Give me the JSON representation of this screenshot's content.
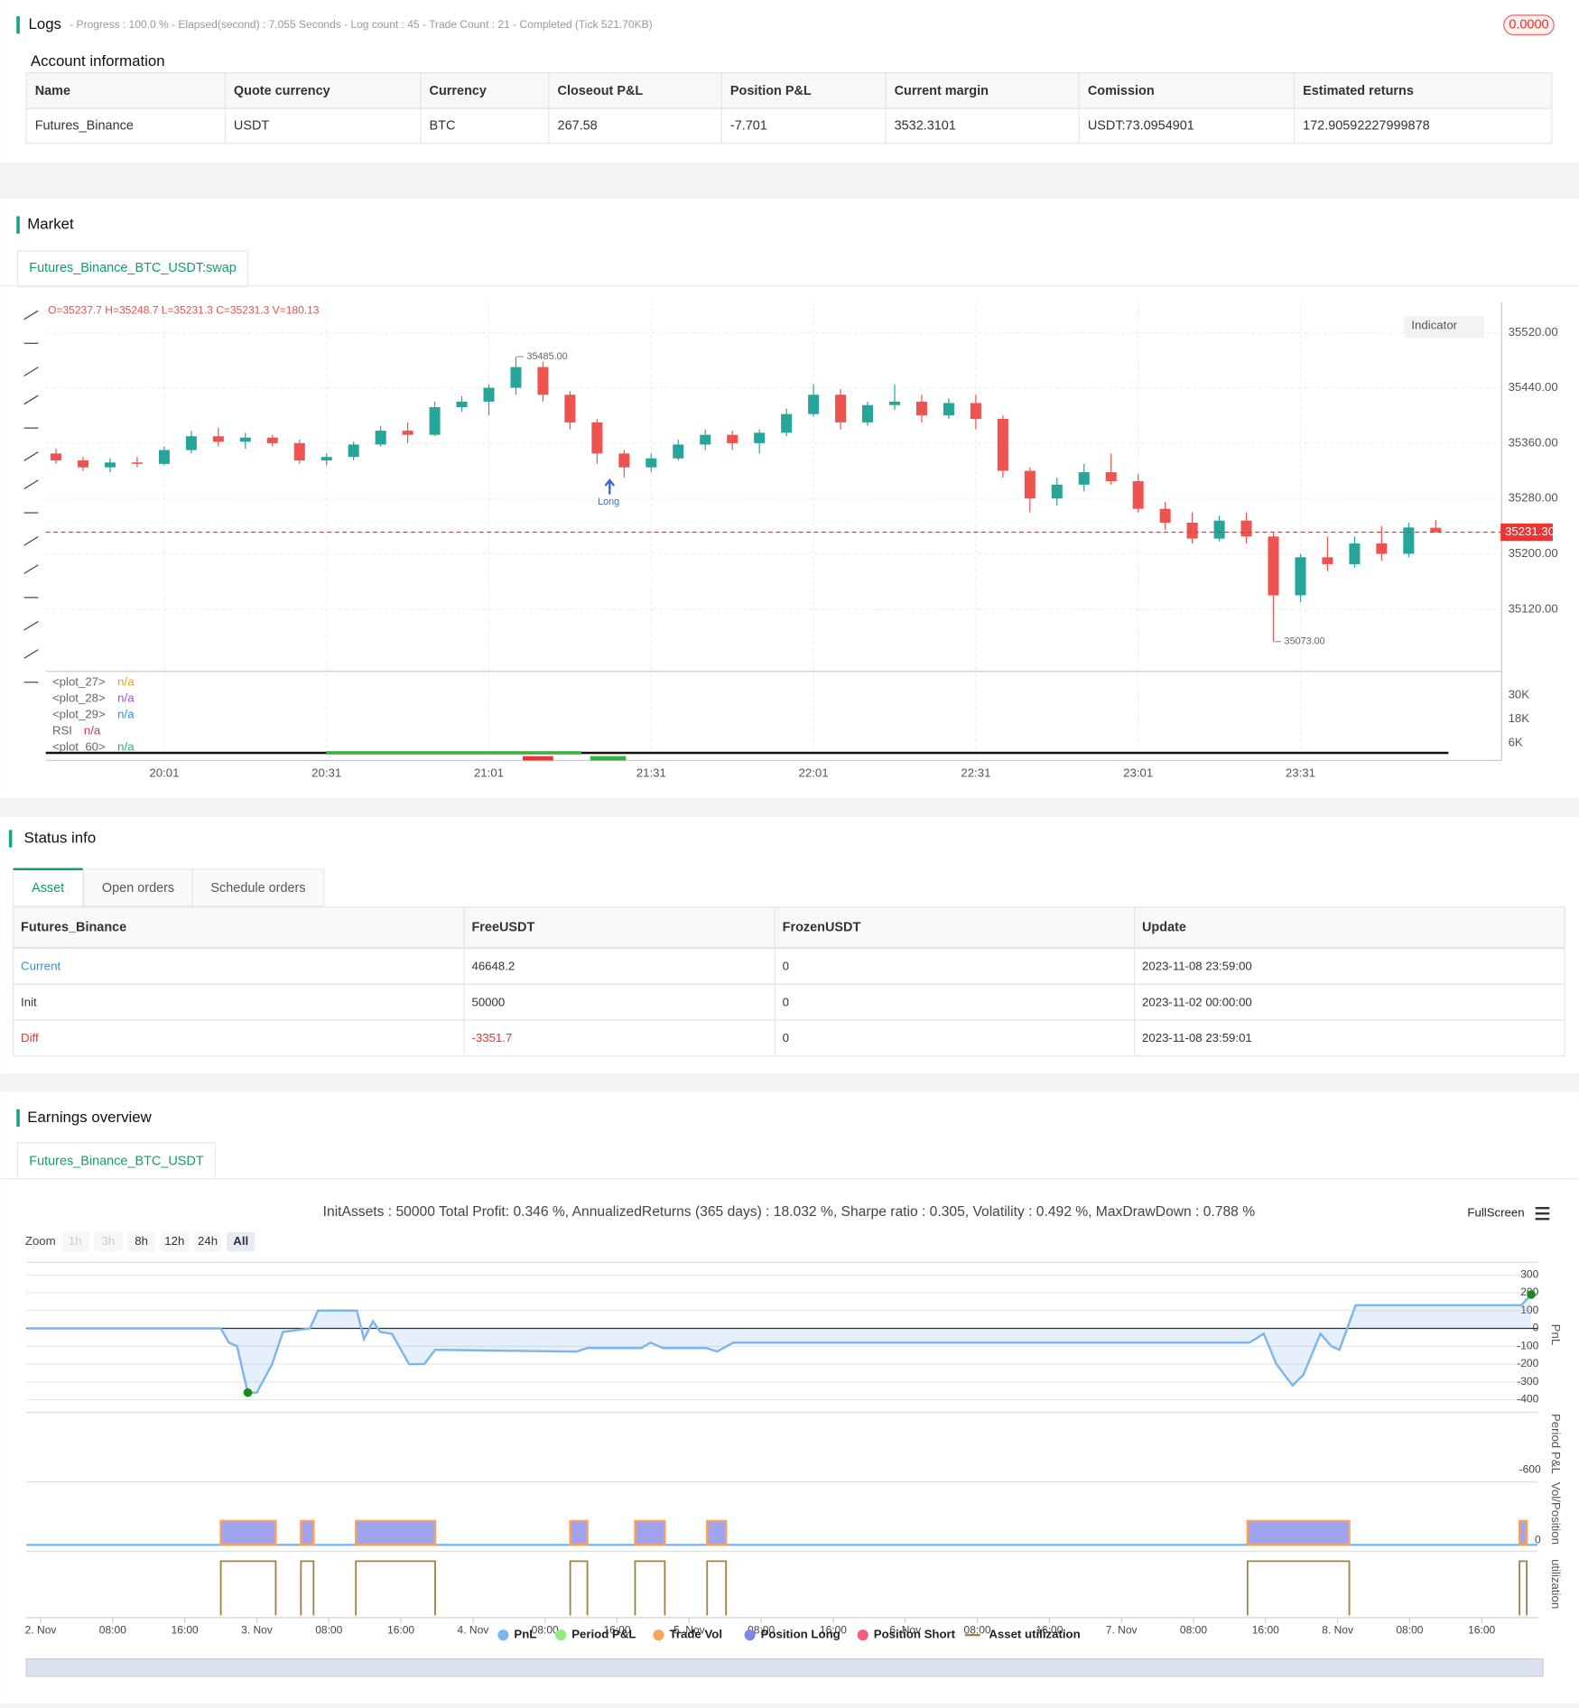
{
  "logs": {
    "title": "Logs",
    "summary": "- Progress : 100.0 % - Elapsed(second) : 7.055  Seconds - Log count : 45 - Trade Count : 21 - Completed (Tick 521.70KB)",
    "badge": "0.0000"
  },
  "account": {
    "title": "Account information",
    "columns": [
      "Name",
      "Quote currency",
      "Currency",
      "Closeout P&L",
      "Position P&L",
      "Current margin",
      "Comission",
      "Estimated returns"
    ],
    "rows": [
      [
        "Futures_Binance",
        "USDT",
        "BTC",
        "267.58",
        "-7.701",
        "3532.3101",
        "USDT:73.0954901",
        "172.90592227999878"
      ]
    ]
  },
  "market": {
    "title": "Market",
    "tab": "Futures_Binance_BTC_USDT:swap",
    "ohlc": "O=35237.7 H=35248.7 L=35231.3 C=35231.3 V=180.13",
    "indicator": "Indicator",
    "long": "Long",
    "legend": [
      {
        "name": "<plot_27>",
        "value": "n/a",
        "color": "#f59a23"
      },
      {
        "name": "<plot_28>",
        "value": "n/a",
        "color": "#9c4fd6"
      },
      {
        "name": "<plot_29>",
        "value": "n/a",
        "color": "#2f8fd8"
      },
      {
        "name": "RSI",
        "value": "n/a",
        "color": "#d6336c"
      },
      {
        "name": "<plot_60>",
        "value": "n/a",
        "color": "#2bb673"
      }
    ],
    "pane_ticks": [
      "30K",
      "18K",
      "6K"
    ]
  },
  "chart_data": [
    {
      "type": "candlestick",
      "categories": [
        null,
        null,
        null,
        null,
        "20:01",
        null,
        null,
        null,
        null,
        null,
        "20:31",
        null,
        null,
        null,
        null,
        null,
        "21:01",
        null,
        null,
        null,
        null,
        null,
        "21:31",
        null,
        null,
        null,
        null,
        null,
        "22:01",
        null,
        null,
        null,
        null,
        null,
        "22:31",
        null,
        null,
        null,
        null,
        null,
        "23:01",
        null,
        null,
        null,
        null,
        null,
        "23:31",
        null,
        null,
        null,
        null,
        null
      ],
      "open": [
        35345,
        35335,
        35325,
        35332,
        35330,
        35350,
        35370,
        35362,
        35368,
        35360,
        35335,
        35340,
        35358,
        35378,
        35372,
        35412,
        35420,
        35440,
        35470,
        35430,
        35390,
        35345,
        35325,
        35338,
        35358,
        35372,
        35360,
        35375,
        35402,
        35430,
        35390,
        35415,
        35420,
        35400,
        35418,
        35395,
        35320,
        35280,
        35300,
        35318,
        35305,
        35265,
        35245,
        35222,
        35248,
        35225,
        35140,
        35195,
        35185,
        35215,
        35200,
        35237.7
      ],
      "high": [
        35352,
        35340,
        35338,
        35340,
        35355,
        35378,
        35382,
        35375,
        35372,
        35365,
        35345,
        35362,
        35385,
        35390,
        35420,
        35428,
        35445,
        35485,
        35478,
        35435,
        35395,
        35350,
        35345,
        35365,
        35380,
        35378,
        35380,
        35410,
        35445,
        35438,
        35420,
        35445,
        35430,
        35425,
        35430,
        35400,
        35325,
        35310,
        35330,
        35345,
        35315,
        35275,
        35260,
        35255,
        35260,
        35230,
        35200,
        35225,
        35225,
        35240,
        35245,
        35248.7
      ],
      "low": [
        35330,
        35320,
        35318,
        35325,
        35328,
        35345,
        35355,
        35352,
        35355,
        35330,
        35328,
        35335,
        35355,
        35360,
        35370,
        35405,
        35400,
        35430,
        35420,
        35380,
        35330,
        35310,
        35318,
        35335,
        35350,
        35350,
        35345,
        35370,
        35398,
        35380,
        35385,
        35408,
        35390,
        35395,
        35380,
        35310,
        35260,
        35270,
        35290,
        35300,
        35260,
        35235,
        35215,
        35218,
        35215,
        35073,
        35130,
        35175,
        35180,
        35190,
        35195,
        35231.3
      ],
      "close": [
        35335,
        35325,
        35332,
        35330,
        35350,
        35370,
        35362,
        35368,
        35360,
        35335,
        35340,
        35358,
        35378,
        35372,
        35412,
        35420,
        35440,
        35470,
        35430,
        35390,
        35345,
        35325,
        35338,
        35358,
        35372,
        35360,
        35375,
        35402,
        35430,
        35390,
        35415,
        35420,
        35400,
        35418,
        35395,
        35320,
        35280,
        35300,
        35318,
        35305,
        35265,
        35245,
        35222,
        35248,
        35225,
        35140,
        35195,
        35185,
        35215,
        35200,
        35238,
        35231.3
      ],
      "up_color": "#26a69a",
      "down_color": "#ef5350",
      "ylim": [
        35030,
        35564
      ],
      "yticks": [
        {
          "value": 35120,
          "label": "35120.00"
        },
        {
          "value": 35200,
          "label": "35200.00"
        },
        {
          "value": 35280,
          "label": "35280.00"
        },
        {
          "value": 35360,
          "label": "35360.00"
        },
        {
          "value": 35440,
          "label": "35440.00"
        },
        {
          "value": 35520,
          "label": "35520.00"
        }
      ],
      "last_price": {
        "value": 35231.3,
        "label": "35231.30"
      },
      "annotations": [
        {
          "value": 35485,
          "label": "35485.00"
        },
        {
          "value": 35073,
          "label": "35073.00"
        }
      ],
      "grid": true
    },
    {
      "type": "line",
      "xlim": [
        -1.6,
        166.2
      ],
      "xticks": [
        {
          "value": 0,
          "label": "2. Nov"
        },
        {
          "value": 8,
          "label": "08:00"
        },
        {
          "value": 16,
          "label": "16:00"
        },
        {
          "value": 24,
          "label": "3. Nov"
        },
        {
          "value": 32,
          "label": "08:00"
        },
        {
          "value": 40,
          "label": "16:00"
        },
        {
          "value": 48,
          "label": "4. Nov"
        },
        {
          "value": 56,
          "label": "08:00"
        },
        {
          "value": 64,
          "label": "16:00"
        },
        {
          "value": 72,
          "label": "5. Nov"
        },
        {
          "value": 80,
          "label": "08:00"
        },
        {
          "value": 88,
          "label": "16:00"
        },
        {
          "value": 96,
          "label": "6. Nov"
        },
        {
          "value": 104,
          "label": "08:00"
        },
        {
          "value": 112,
          "label": "16:00"
        },
        {
          "value": 120,
          "label": "7. Nov"
        },
        {
          "value": 128,
          "label": "08:00"
        },
        {
          "value": 136,
          "label": "16:00"
        },
        {
          "value": 144,
          "label": "8. Nov"
        },
        {
          "value": 152,
          "label": "08:00"
        },
        {
          "value": 160,
          "label": "16:00"
        }
      ],
      "ylim": [
        -440,
        370
      ],
      "yticks": [
        300,
        200,
        100,
        0,
        -100,
        -200,
        -300,
        -400
      ],
      "series": [
        {
          "name": "PnL",
          "color": "#7cb5ec",
          "x": [
            -1.5,
            20.0,
            20.9,
            21.8,
            23.0,
            24.0,
            25.7,
            26.9,
            29.9,
            30.8,
            35.1,
            35.9,
            36.9,
            37.7,
            39.0,
            40.9,
            42.6,
            43.8,
            59.5,
            60.7,
            66.7,
            67.7,
            69.1,
            73.9,
            75.1,
            76.9,
            134.2,
            135.8,
            137.2,
            139.0,
            140.2,
            142.1,
            143.3,
            144.2,
            146.0,
            164.4,
            165.5
          ],
          "values": [
            0,
            0,
            -80,
            -100,
            -360,
            -360,
            -200,
            -20,
            0,
            100,
            100,
            -60,
            40,
            -20,
            -30,
            -200,
            -200,
            -120,
            -130,
            -110,
            -110,
            -80,
            -110,
            -110,
            -130,
            -80,
            -80,
            -30,
            -200,
            -320,
            -260,
            -30,
            -100,
            -120,
            130,
            130,
            190
          ]
        },
        {
          "name": "Period P&L",
          "color": "#90ed7d"
        },
        {
          "name": "Trade Vol",
          "color": "#f7a35c"
        },
        {
          "name": "Position Long",
          "color": "#8085e9",
          "ranges": [
            [
              20.0,
              26.1
            ],
            [
              28.9,
              30.3
            ],
            [
              35.0,
              43.8
            ],
            [
              58.8,
              60.7
            ],
            [
              66.0,
              69.3
            ],
            [
              74.0,
              76.1
            ],
            [
              134.0,
              145.3
            ],
            [
              164.2,
              165.0
            ]
          ]
        },
        {
          "name": "Position Short",
          "color": "#f15c80"
        },
        {
          "name": "Asset utilization",
          "color": "#9a8446",
          "ranges": [
            [
              20.0,
              26.1
            ],
            [
              28.9,
              30.3
            ],
            [
              35.0,
              43.8
            ],
            [
              58.8,
              60.7
            ],
            [
              66.0,
              69.3
            ],
            [
              74.0,
              76.1
            ],
            [
              134.0,
              145.3
            ],
            [
              164.2,
              165.0
            ]
          ]
        }
      ]
    }
  ],
  "status": {
    "title": "Status info",
    "tabs": [
      "Asset",
      "Open orders",
      "Schedule orders"
    ],
    "columns": [
      "Futures_Binance",
      "FreeUSDT",
      "FrozenUSDT",
      "Update"
    ],
    "rows": [
      [
        "Current",
        "46648.2",
        "0",
        "2023-11-08 23:59:00"
      ],
      [
        "Init",
        "50000",
        "0",
        "2023-11-02 00:00:00"
      ],
      [
        "Diff",
        "-3351.7",
        "0",
        "2023-11-08 23:59:01"
      ]
    ]
  },
  "earnings": {
    "title": "Earnings overview",
    "tab": "Futures_Binance_BTC_USDT",
    "stats": "InitAssets : 50000 Total Profit: 0.346 %, AnnualizedReturns (365 days) : 18.032 %, Sharpe ratio : 0.305, Volatility : 0.492 %, MaxDrawDown : 0.788 %",
    "fullscreen": "FullScreen",
    "zoom": "Zoom",
    "zoom_buttons": [
      "1h",
      "3h",
      "8h",
      "12h",
      "24h",
      "All"
    ],
    "axis_titles": [
      "PnL",
      "Period P&L",
      "Vol/Position",
      "utilization"
    ],
    "pane_ticks": [
      "-600",
      "0"
    ]
  }
}
